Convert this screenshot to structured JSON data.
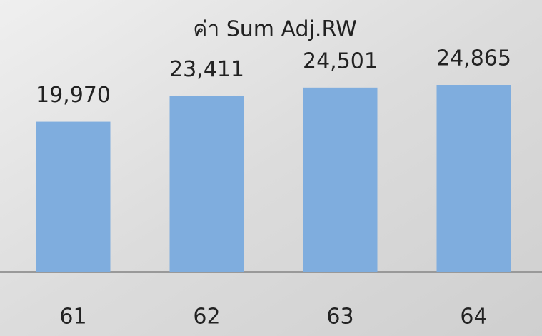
{
  "chart_data": {
    "type": "bar",
    "title": "ค่า Sum Adj.RW",
    "categories": [
      "61",
      "62",
      "63",
      "64"
    ],
    "values": [
      19970,
      23411,
      24501,
      24865
    ],
    "value_labels": [
      "19,970",
      "23,411",
      "24,501",
      "24,865"
    ],
    "color": "#7fadde"
  }
}
